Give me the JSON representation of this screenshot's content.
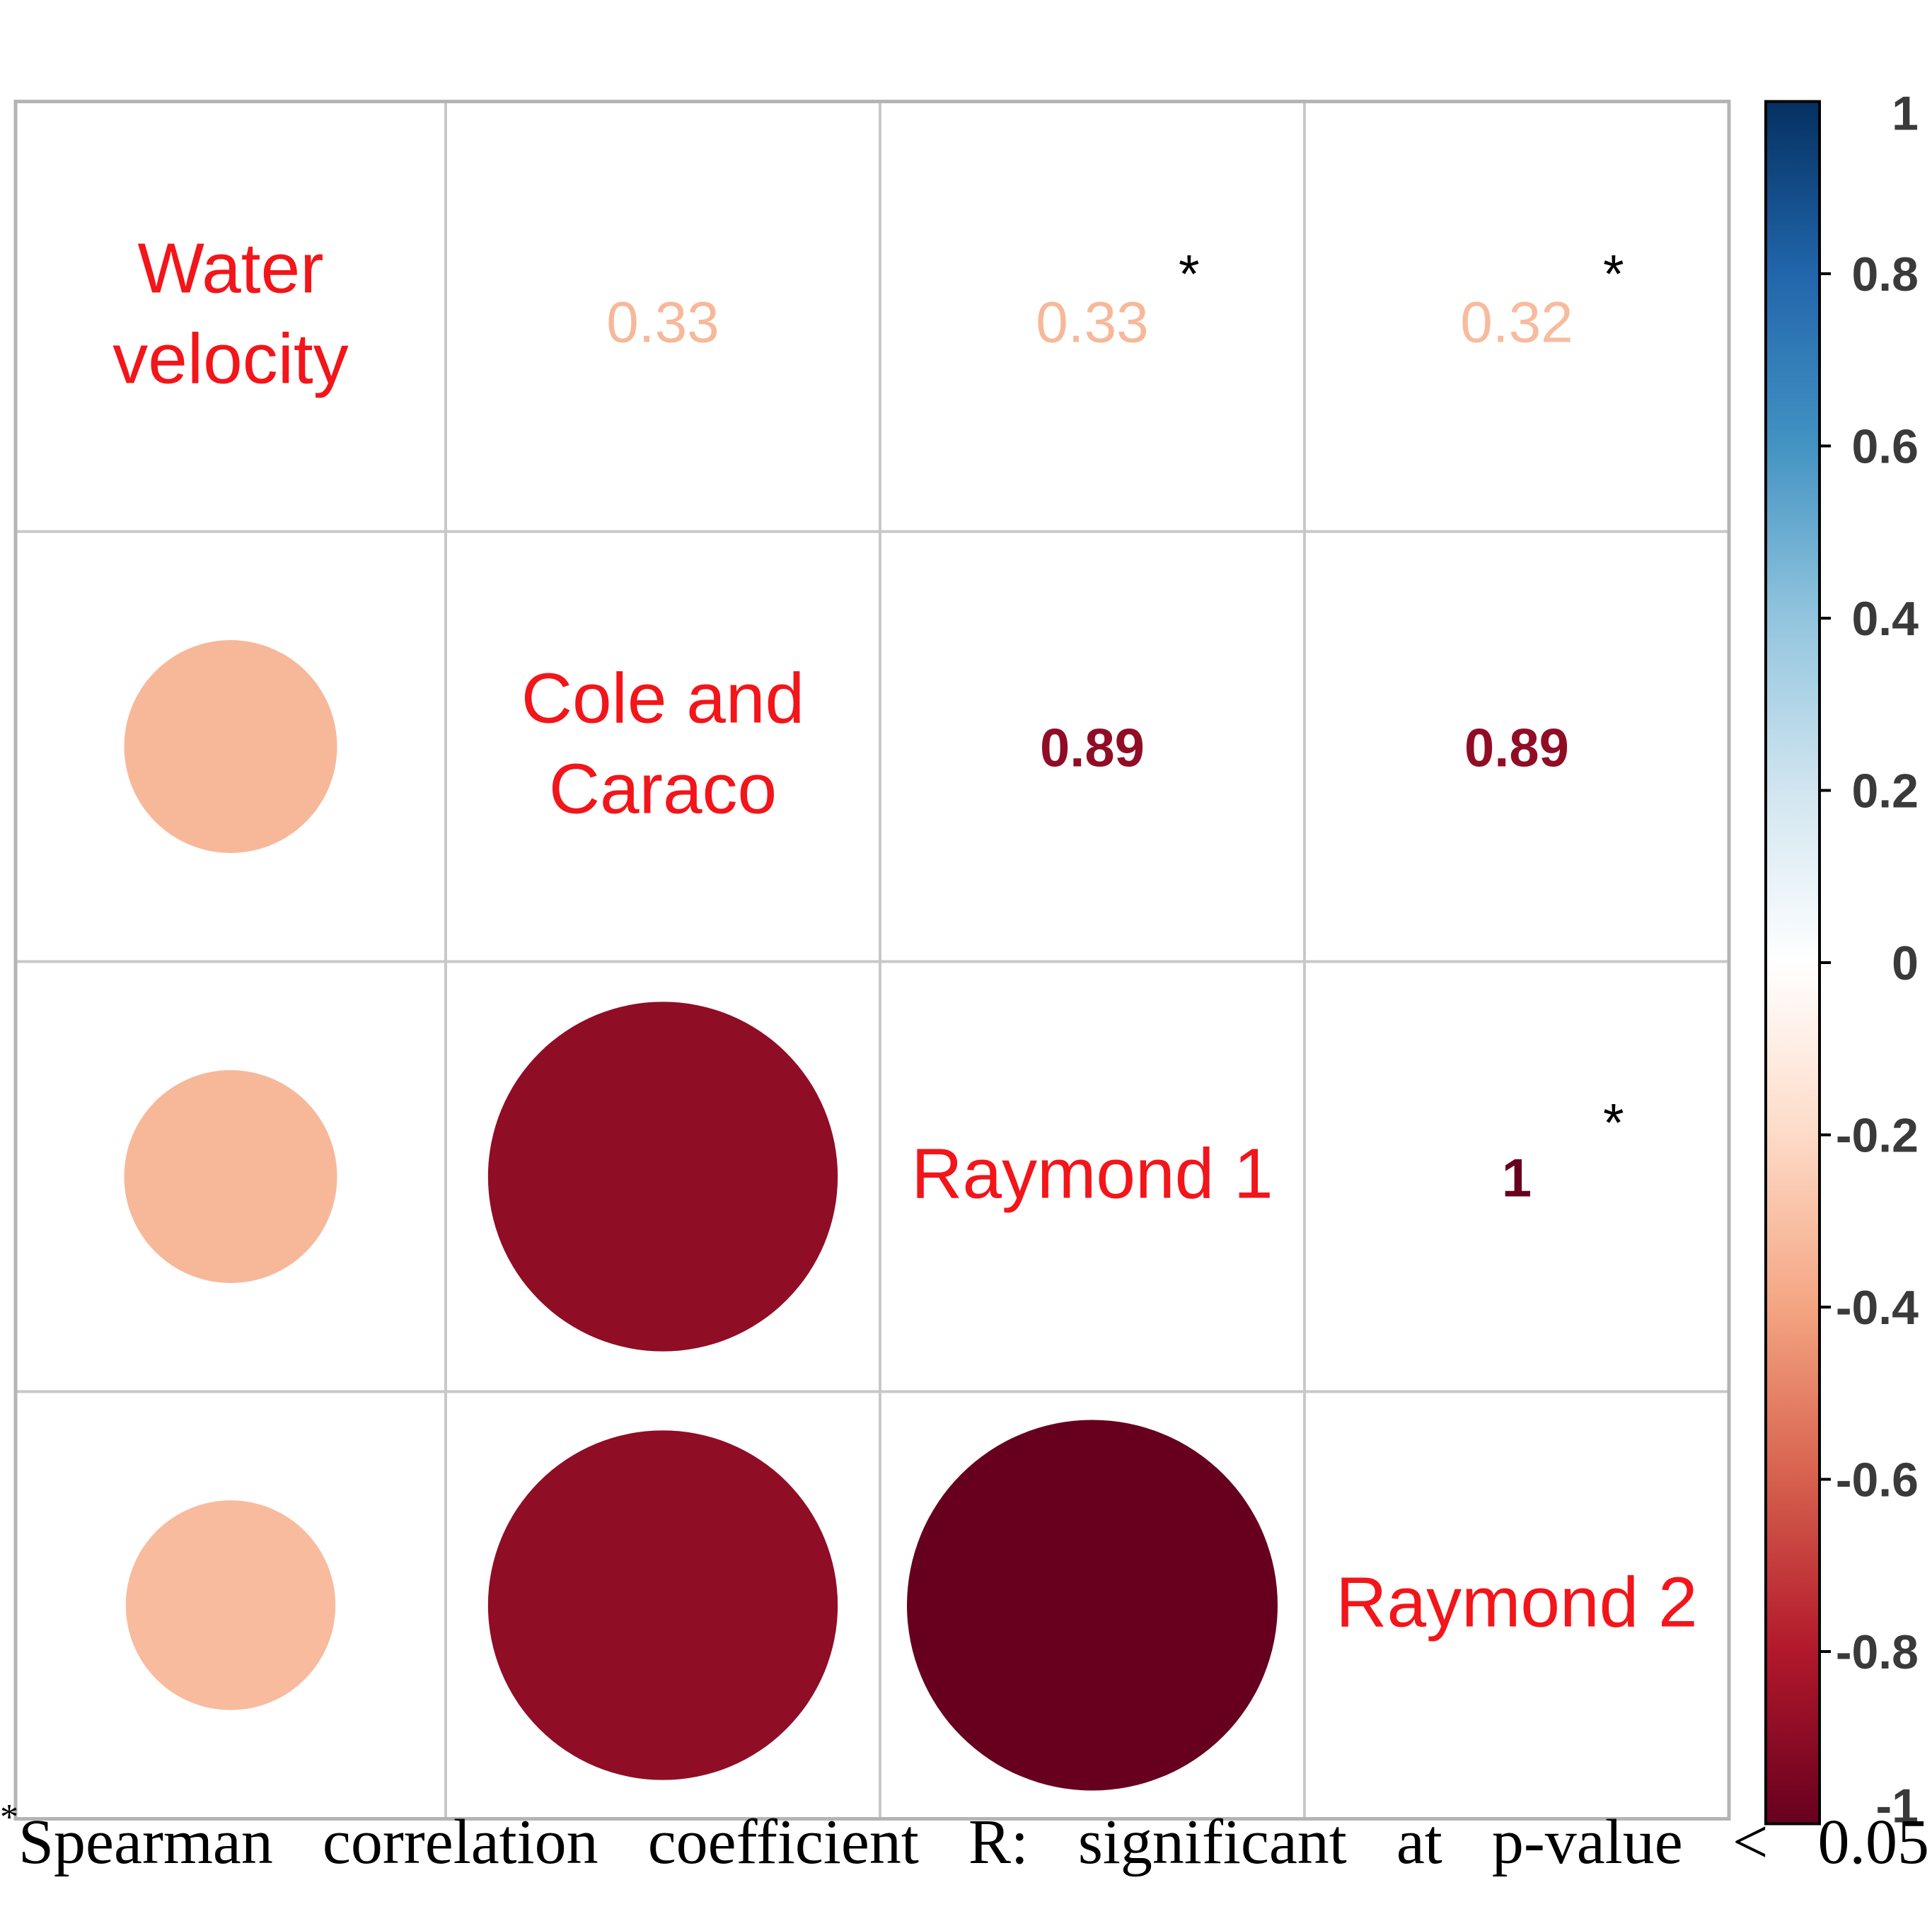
{
  "chart_data": {
    "type": "heatmap",
    "variables": [
      "Water velocity",
      "Cole and Caraco",
      "Raymond 1",
      "Raymond 2"
    ],
    "diagonal_labels": [
      [
        "Water",
        "velocity"
      ],
      [
        "Cole and",
        "Caraco"
      ],
      [
        "Raymond  1"
      ],
      [
        "Raymond  2"
      ]
    ],
    "cells": [
      {
        "row": 0,
        "col": 1,
        "value": 0.33,
        "display": "circle",
        "text": "0.33"
      },
      {
        "row": 0,
        "col": 2,
        "value": 0.33,
        "display": "number",
        "text": "0.33",
        "significant": true
      },
      {
        "row": 0,
        "col": 3,
        "value": 0.32,
        "display": "number",
        "text": "0.32",
        "significant": true
      },
      {
        "row": 1,
        "col": 0,
        "value": 0.33,
        "display": "circle"
      },
      {
        "row": 1,
        "col": 2,
        "value": 0.89,
        "display": "number",
        "text": "0.89",
        "significant": false
      },
      {
        "row": 1,
        "col": 3,
        "value": 0.89,
        "display": "number",
        "text": "0.89",
        "significant": false
      },
      {
        "row": 2,
        "col": 0,
        "value": 0.33,
        "display": "circle"
      },
      {
        "row": 2,
        "col": 1,
        "value": 0.89,
        "display": "circle"
      },
      {
        "row": 2,
        "col": 3,
        "value": 1,
        "display": "number",
        "text": "1",
        "significant": true
      },
      {
        "row": 3,
        "col": 0,
        "value": 0.32,
        "display": "circle"
      },
      {
        "row": 3,
        "col": 1,
        "value": 0.89,
        "display": "circle"
      },
      {
        "row": 3,
        "col": 2,
        "value": 1,
        "display": "circle"
      }
    ],
    "significance_marker": "*",
    "colorbar": {
      "range": [
        -1,
        1
      ],
      "ticks": [
        "1",
        "0.8",
        "0.6",
        "0.4",
        "0.2",
        "0",
        "-0.2",
        "-0.4",
        "-0.6",
        "-0.8",
        "-1"
      ],
      "tick_values": [
        1,
        0.8,
        0.6,
        0.4,
        0.2,
        0,
        -0.2,
        -0.4,
        -0.6,
        -0.8,
        -1
      ],
      "placement": "right"
    },
    "colors": {
      "diagonal_label": "#f2151a",
      "grid": "#c8c8c8",
      "outer_border": "#b4b4b4",
      "significance_marker": "#000000",
      "scale": [
        "#67001f",
        "#b2182b",
        "#d6604d",
        "#f4a582",
        "#fddbc7",
        "#ffffff",
        "#d1e5f0",
        "#92c5de",
        "#4393c3",
        "#2166ac",
        "#053061"
      ]
    },
    "footnote": {
      "marker": "*",
      "words": [
        "Spearman",
        "correlation",
        "coefficient",
        "R:",
        "significant",
        "at",
        "p-value",
        "<",
        "0.05"
      ]
    }
  }
}
